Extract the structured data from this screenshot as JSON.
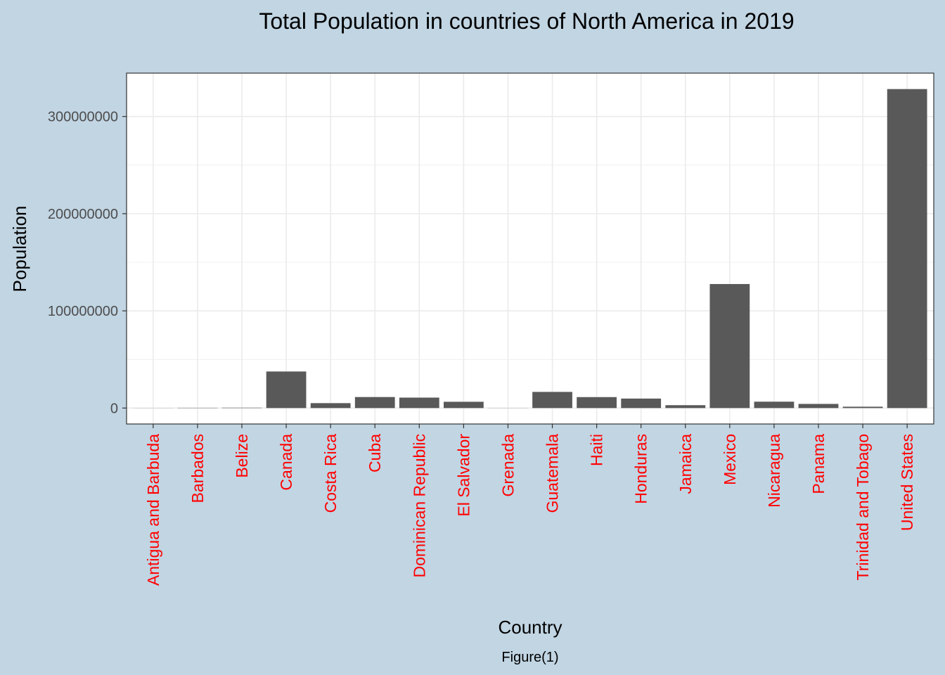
{
  "chart_data": {
    "type": "bar",
    "title": "Total Population in countries of North America in 2019",
    "xlabel": "Country",
    "ylabel": "Population",
    "caption": "Figure(1)",
    "categories": [
      "Antigua and Barbuda",
      "Barbados",
      "Belize",
      "Canada",
      "Costa Rica",
      "Cuba",
      "Dominican Republic",
      "El Salvador",
      "Grenada",
      "Guatemala",
      "Haiti",
      "Honduras",
      "Jamaica",
      "Mexico",
      "Nicaragua",
      "Panama",
      "Trinidad and Tobago",
      "United States"
    ],
    "values": [
      97000,
      287000,
      390000,
      37600000,
      5050000,
      11330000,
      10740000,
      6450000,
      112000,
      16600000,
      11260000,
      9750000,
      2950000,
      127600000,
      6550000,
      4250000,
      1390000,
      328200000
    ],
    "yticks": [
      0,
      100000000,
      200000000,
      300000000
    ],
    "ytick_labels": [
      "0",
      "100000000",
      "200000000",
      "300000000"
    ],
    "ylim": [
      -16400000,
      344600000
    ],
    "grid": true,
    "legend": "none",
    "colors": {
      "background": "#c1d5e3",
      "panel": "#ffffff",
      "bar": "#595959",
      "grid": "#ebebeb",
      "tick_label": "#4d4d4d",
      "category_label": "#ff0000"
    }
  }
}
